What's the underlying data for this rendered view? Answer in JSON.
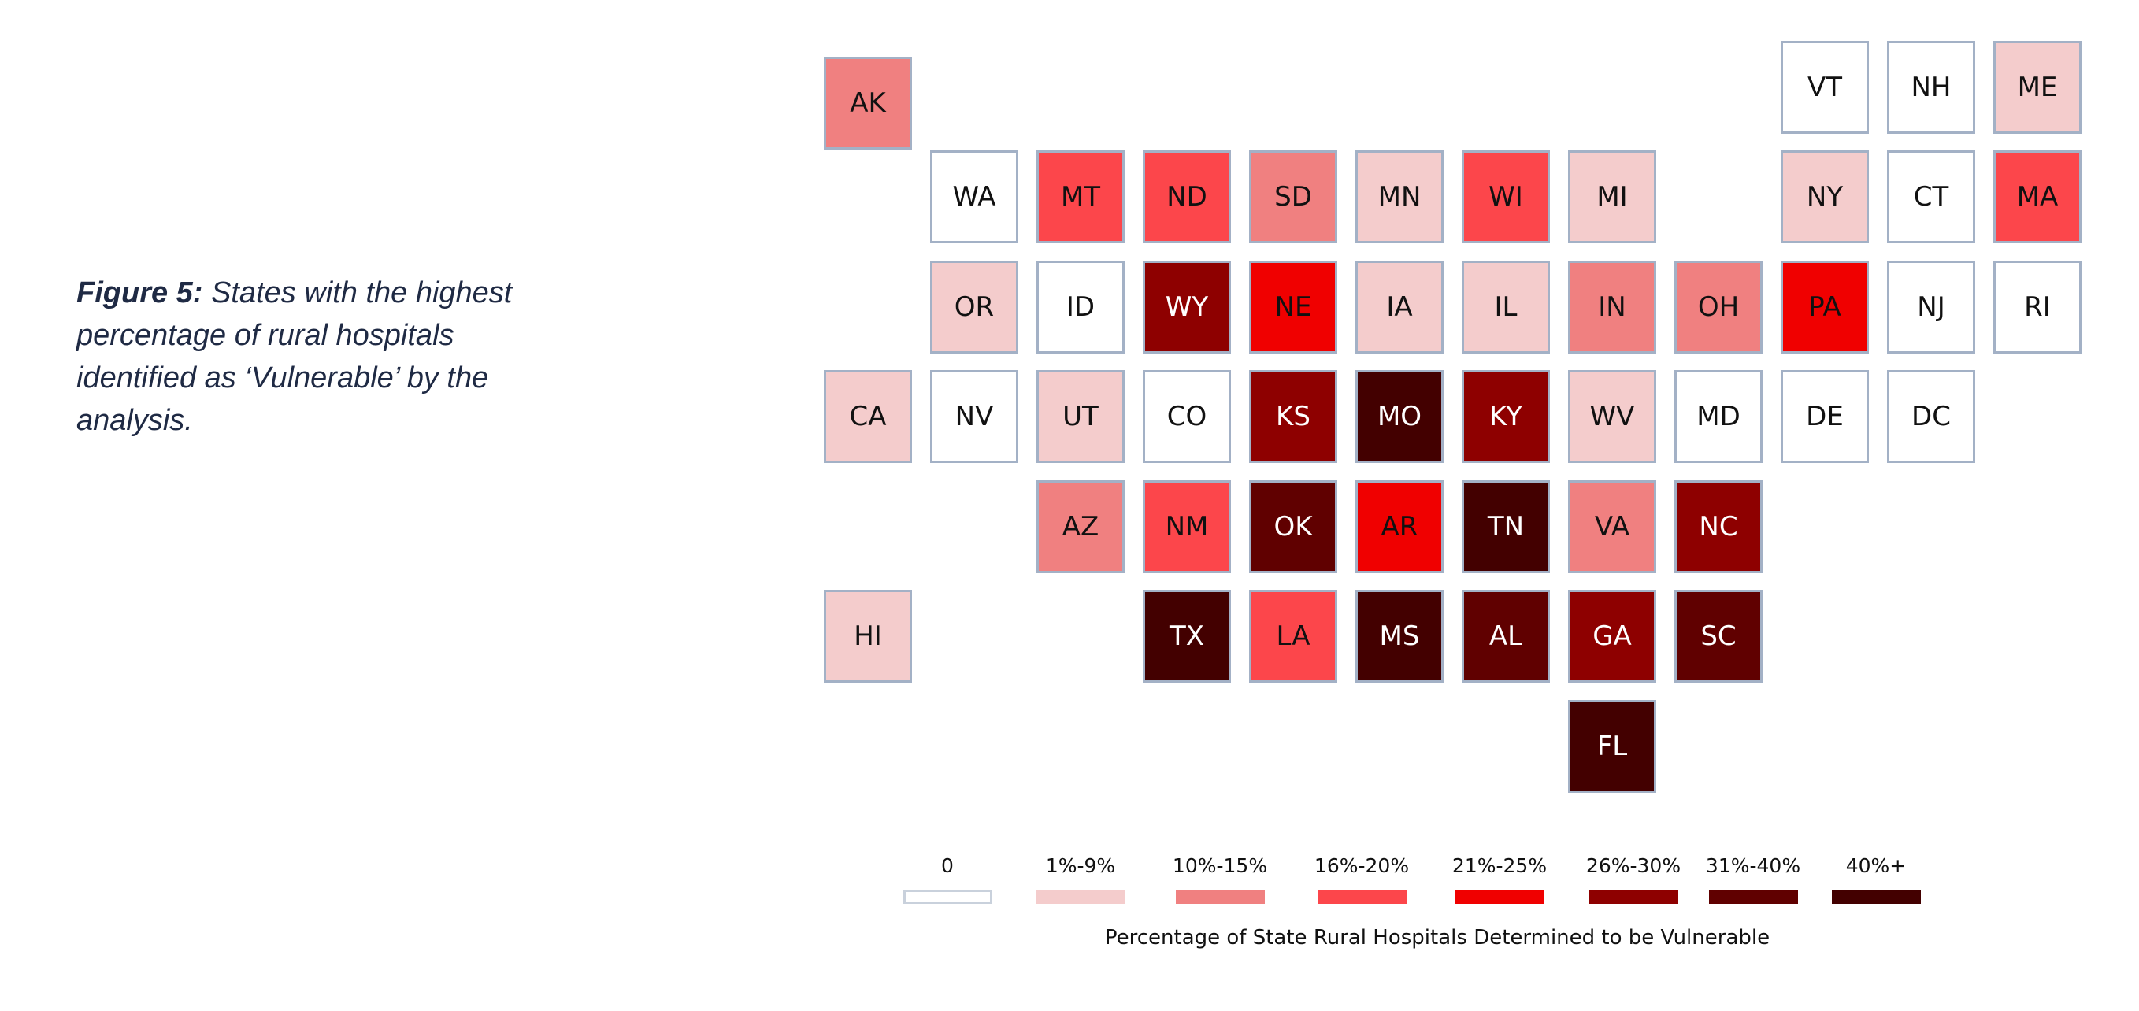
{
  "caption": {
    "label": "Figure 5:",
    "text": " States with the highest percentage of rural hospitals identified as ‘Vulnerable’ by the analysis."
  },
  "chart_data": {
    "type": "heatmap",
    "title": "Percentage of State Rural Hospitals Determined to be Vulnerable",
    "categories": [
      "0",
      "1%-9%",
      "10%-15%",
      "16%-20%",
      "21%-25%",
      "26%-30%",
      "31%-40%",
      "40%+"
    ],
    "colors": [
      "#FFFFFF",
      "#F4CCCC",
      "#F08080",
      "#FC464B",
      "#F00000",
      "#8E0000",
      "#600000",
      "#430000"
    ],
    "legend_placement": "bottom",
    "states": [
      {
        "abbr": "AK",
        "category": 2
      },
      {
        "abbr": "VT",
        "category": 0
      },
      {
        "abbr": "NH",
        "category": 0
      },
      {
        "abbr": "ME",
        "category": 1
      },
      {
        "abbr": "WA",
        "category": 0
      },
      {
        "abbr": "MT",
        "category": 3
      },
      {
        "abbr": "ND",
        "category": 3
      },
      {
        "abbr": "SD",
        "category": 2
      },
      {
        "abbr": "MN",
        "category": 1
      },
      {
        "abbr": "WI",
        "category": 3
      },
      {
        "abbr": "MI",
        "category": 1
      },
      {
        "abbr": "NY",
        "category": 1
      },
      {
        "abbr": "CT",
        "category": 0
      },
      {
        "abbr": "MA",
        "category": 3
      },
      {
        "abbr": "OR",
        "category": 1
      },
      {
        "abbr": "ID",
        "category": 0
      },
      {
        "abbr": "WY",
        "category": 5
      },
      {
        "abbr": "NE",
        "category": 4
      },
      {
        "abbr": "IA",
        "category": 1
      },
      {
        "abbr": "IL",
        "category": 1
      },
      {
        "abbr": "IN",
        "category": 2
      },
      {
        "abbr": "OH",
        "category": 2
      },
      {
        "abbr": "PA",
        "category": 4
      },
      {
        "abbr": "NJ",
        "category": 0
      },
      {
        "abbr": "RI",
        "category": 0
      },
      {
        "abbr": "CA",
        "category": 1
      },
      {
        "abbr": "NV",
        "category": 0
      },
      {
        "abbr": "UT",
        "category": 1
      },
      {
        "abbr": "CO",
        "category": 0
      },
      {
        "abbr": "KS",
        "category": 5
      },
      {
        "abbr": "MO",
        "category": 7
      },
      {
        "abbr": "KY",
        "category": 5
      },
      {
        "abbr": "WV",
        "category": 1
      },
      {
        "abbr": "MD",
        "category": 0
      },
      {
        "abbr": "DE",
        "category": 0
      },
      {
        "abbr": "DC",
        "category": 0
      },
      {
        "abbr": "AZ",
        "category": 2
      },
      {
        "abbr": "NM",
        "category": 3
      },
      {
        "abbr": "OK",
        "category": 6
      },
      {
        "abbr": "AR",
        "category": 4
      },
      {
        "abbr": "TN",
        "category": 7
      },
      {
        "abbr": "VA",
        "category": 2
      },
      {
        "abbr": "NC",
        "category": 5
      },
      {
        "abbr": "HI",
        "category": 1
      },
      {
        "abbr": "TX",
        "category": 7
      },
      {
        "abbr": "LA",
        "category": 3
      },
      {
        "abbr": "MS",
        "category": 7
      },
      {
        "abbr": "AL",
        "category": 6
      },
      {
        "abbr": "GA",
        "category": 5
      },
      {
        "abbr": "SC",
        "category": 6
      },
      {
        "abbr": "FL",
        "category": 7
      }
    ]
  }
}
